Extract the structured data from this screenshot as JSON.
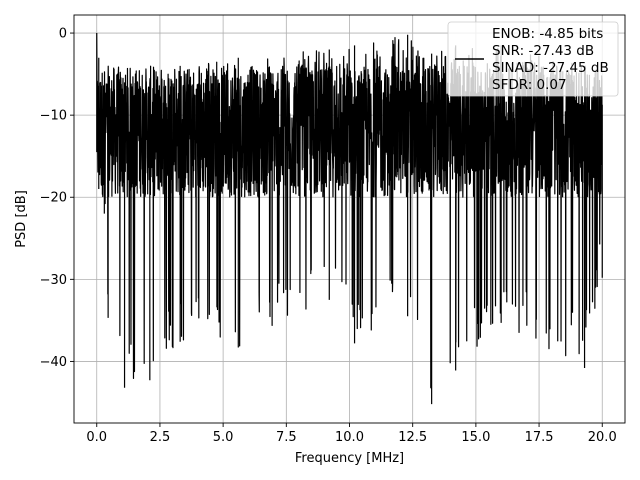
{
  "chart_data": {
    "type": "line",
    "xlabel": "Frequency [MHz]",
    "ylabel": "PSD [dB]",
    "xlim": [
      -0.9,
      20.9
    ],
    "ylim": [
      -47.5,
      2.2
    ],
    "xticks": [
      0.0,
      2.5,
      5.0,
      7.5,
      10.0,
      12.5,
      15.0,
      17.5,
      20.0
    ],
    "xtick_labels": [
      "0.0",
      "2.5",
      "5.0",
      "7.5",
      "10.0",
      "12.5",
      "15.0",
      "17.5",
      "20.0"
    ],
    "yticks": [
      0,
      -10,
      -20,
      -30,
      -40
    ],
    "ytick_labels": [
      "0",
      "−10",
      "−20",
      "−30",
      "−40"
    ],
    "grid": true,
    "legend_position": "upper-right",
    "legend_lines": [
      "ENOB: -4.85 bits",
      "SNR: -27.43 dB",
      "SINAD: -27.45 dB",
      "SFDR: 0.07"
    ],
    "series": [
      {
        "color": "#000000",
        "x_range": [
          0.0,
          20.0
        ],
        "typical_band_db": [
          -20,
          -4
        ],
        "peak_db": 0.0,
        "min_db": -45.2,
        "envelope_points": [
          {
            "x": 0.0,
            "max": 0.0,
            "min": -14.5
          },
          {
            "x": 0.08,
            "max": -3.0,
            "min": -19.0
          },
          {
            "x": 0.3,
            "max": -8.0,
            "min": -22.0
          },
          {
            "x": 0.45,
            "max": -7.0,
            "min": -34.7
          },
          {
            "x": 1.1,
            "max": -6.0,
            "min": -43.2
          },
          {
            "x": 2.1,
            "max": -6.0,
            "min": -42.3
          },
          {
            "x": 3.3,
            "max": -4.0,
            "min": -37.6
          },
          {
            "x": 5.6,
            "max": -3.0,
            "min": -38.3
          },
          {
            "x": 9.2,
            "max": -2.0,
            "min": -32.5
          },
          {
            "x": 10.2,
            "max": -1.5,
            "min": -37.8
          },
          {
            "x": 12.3,
            "max": -0.2,
            "min": -34.5
          },
          {
            "x": 13.25,
            "max": -2.5,
            "min": -45.2
          },
          {
            "x": 14.2,
            "max": -1.5,
            "min": -41.1
          },
          {
            "x": 16.0,
            "max": -1.5,
            "min": -35.3
          },
          {
            "x": 19.3,
            "max": -4.0,
            "min": -40.8
          },
          {
            "x": 20.0,
            "max": -10.0,
            "min": -29.8
          }
        ]
      }
    ]
  }
}
